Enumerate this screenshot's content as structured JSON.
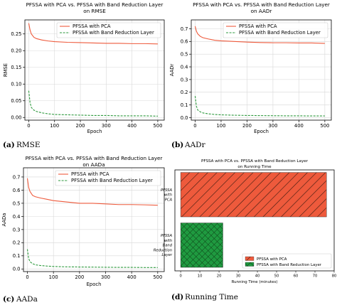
{
  "line_legend": [
    "PFSSA with PCA",
    "PFSSA with Band Reduction Layer"
  ],
  "colors": {
    "pca": "#ee5a3c",
    "brl": "#2e9a3e"
  },
  "chart_data": [
    {
      "type": "line",
      "panel": "a",
      "caption_letter": "(a)",
      "caption_text": "RMSE",
      "title_lines": [
        "PFSSA with PCA vs. PFSSA with Band Reduction Layer",
        "on RMSE"
      ],
      "xlabel": "Epoch",
      "ylabel": "RMSE",
      "xlim": [
        -15,
        525
      ],
      "ylim": [
        -0.008,
        0.292
      ],
      "xticks": [
        0,
        100,
        200,
        300,
        400,
        500
      ],
      "yticks": [
        0.0,
        0.05,
        0.1,
        0.15,
        0.2,
        0.25
      ],
      "ytick_labels": [
        "0.00",
        "0.05",
        "0.10",
        "0.15",
        "0.20",
        "0.25"
      ],
      "legend_position": "top-right",
      "series": [
        {
          "name": "PFSSA with PCA",
          "style": "solid",
          "x": [
            0,
            5,
            10,
            20,
            30,
            50,
            75,
            100,
            150,
            200,
            250,
            300,
            350,
            400,
            450,
            500
          ],
          "y": [
            0.282,
            0.262,
            0.25,
            0.24,
            0.236,
            0.232,
            0.229,
            0.227,
            0.225,
            0.224,
            0.223,
            0.222,
            0.222,
            0.221,
            0.221,
            0.22
          ]
        },
        {
          "name": "PFSSA with Band Reduction Layer",
          "style": "dashed",
          "x": [
            0,
            5,
            10,
            20,
            30,
            50,
            75,
            100,
            150,
            200,
            250,
            300,
            350,
            400,
            450,
            500
          ],
          "y": [
            0.08,
            0.045,
            0.03,
            0.022,
            0.018,
            0.014,
            0.011,
            0.009,
            0.008,
            0.007,
            0.006,
            0.006,
            0.005,
            0.005,
            0.005,
            0.004
          ]
        }
      ]
    },
    {
      "type": "line",
      "panel": "b",
      "caption_letter": "(b)",
      "caption_text": "AADr",
      "title_lines": [
        "PFSSA with PCA vs. PFSSA with Band Reduction Layer",
        "on AADr"
      ],
      "xlabel": "Epoch",
      "ylabel": "AADr",
      "xlim": [
        -15,
        525
      ],
      "ylim": [
        -0.02,
        0.77
      ],
      "xticks": [
        0,
        100,
        200,
        300,
        400,
        500
      ],
      "yticks": [
        0.0,
        0.1,
        0.2,
        0.3,
        0.4,
        0.5,
        0.6,
        0.7
      ],
      "ytick_labels": [
        "0.0",
        "0.1",
        "0.2",
        "0.3",
        "0.4",
        "0.5",
        "0.6",
        "0.7"
      ],
      "legend_position": "top-right",
      "series": [
        {
          "name": "PFSSA with PCA",
          "style": "solid",
          "x": [
            0,
            5,
            10,
            20,
            30,
            50,
            75,
            100,
            150,
            200,
            250,
            300,
            350,
            400,
            450,
            500
          ],
          "y": [
            0.72,
            0.68,
            0.66,
            0.64,
            0.63,
            0.62,
            0.61,
            0.605,
            0.6,
            0.595,
            0.592,
            0.59,
            0.59,
            0.588,
            0.588,
            0.585
          ]
        },
        {
          "name": "PFSSA with Band Reduction Layer",
          "style": "dashed",
          "x": [
            0,
            5,
            10,
            20,
            30,
            50,
            75,
            100,
            150,
            200,
            250,
            300,
            350,
            400,
            450,
            500
          ],
          "y": [
            0.17,
            0.09,
            0.06,
            0.045,
            0.037,
            0.03,
            0.025,
            0.022,
            0.019,
            0.017,
            0.016,
            0.015,
            0.014,
            0.014,
            0.013,
            0.013
          ]
        }
      ]
    },
    {
      "type": "line",
      "panel": "c",
      "caption_letter": "(c)",
      "caption_text": "AADa",
      "title_lines": [
        "PFSSA with PCA vs. PFSSA with Band Reduction Layer",
        "on AADa"
      ],
      "xlabel": "Epoch",
      "ylabel": "AADa",
      "xlim": [
        -15,
        525
      ],
      "ylim": [
        -0.02,
        0.77
      ],
      "xticks": [
        0,
        100,
        200,
        300,
        400,
        500
      ],
      "yticks": [
        0.0,
        0.1,
        0.2,
        0.3,
        0.4,
        0.5,
        0.6,
        0.7
      ],
      "ytick_labels": [
        "0.0",
        "0.1",
        "0.2",
        "0.3",
        "0.4",
        "0.5",
        "0.6",
        "0.7"
      ],
      "legend_position": "top-right",
      "series": [
        {
          "name": "PFSSA with PCA",
          "style": "solid",
          "x": [
            0,
            5,
            10,
            20,
            30,
            50,
            75,
            100,
            150,
            200,
            250,
            300,
            350,
            400,
            450,
            500
          ],
          "y": [
            0.69,
            0.62,
            0.59,
            0.56,
            0.55,
            0.54,
            0.53,
            0.52,
            0.51,
            0.5,
            0.5,
            0.495,
            0.49,
            0.49,
            0.488,
            0.485
          ]
        },
        {
          "name": "PFSSA with Band Reduction Layer",
          "style": "dashed",
          "x": [
            0,
            5,
            10,
            20,
            30,
            50,
            75,
            100,
            150,
            200,
            250,
            300,
            350,
            400,
            450,
            500
          ],
          "y": [
            0.15,
            0.08,
            0.055,
            0.04,
            0.032,
            0.026,
            0.022,
            0.019,
            0.016,
            0.015,
            0.014,
            0.013,
            0.012,
            0.012,
            0.011,
            0.011
          ]
        }
      ]
    },
    {
      "type": "bar",
      "orientation": "horizontal",
      "panel": "d",
      "caption_letter": "(d)",
      "caption_text": "Running Time",
      "title_lines": [
        "PFSSA with PCA vs. PFSSA with Band Reduction Layer",
        "on Running Time"
      ],
      "xlabel": "Running Time (minutes)",
      "xlim": [
        -3,
        80
      ],
      "xticks": [
        0,
        10,
        20,
        30,
        40,
        50,
        60,
        70,
        80
      ],
      "categories": [
        [
          "PFSSA",
          "with",
          "PCA"
        ],
        [
          "PFSSA",
          "with",
          "Band",
          "Reduction",
          "Layer"
        ]
      ],
      "values": [
        76,
        22
      ],
      "legend": [
        "PFSSA with PCA",
        "PFSSA with Band Reduction Layer"
      ],
      "legend_position": "bottom-right",
      "hatches": [
        "diagonal",
        "crosshatch"
      ]
    }
  ]
}
